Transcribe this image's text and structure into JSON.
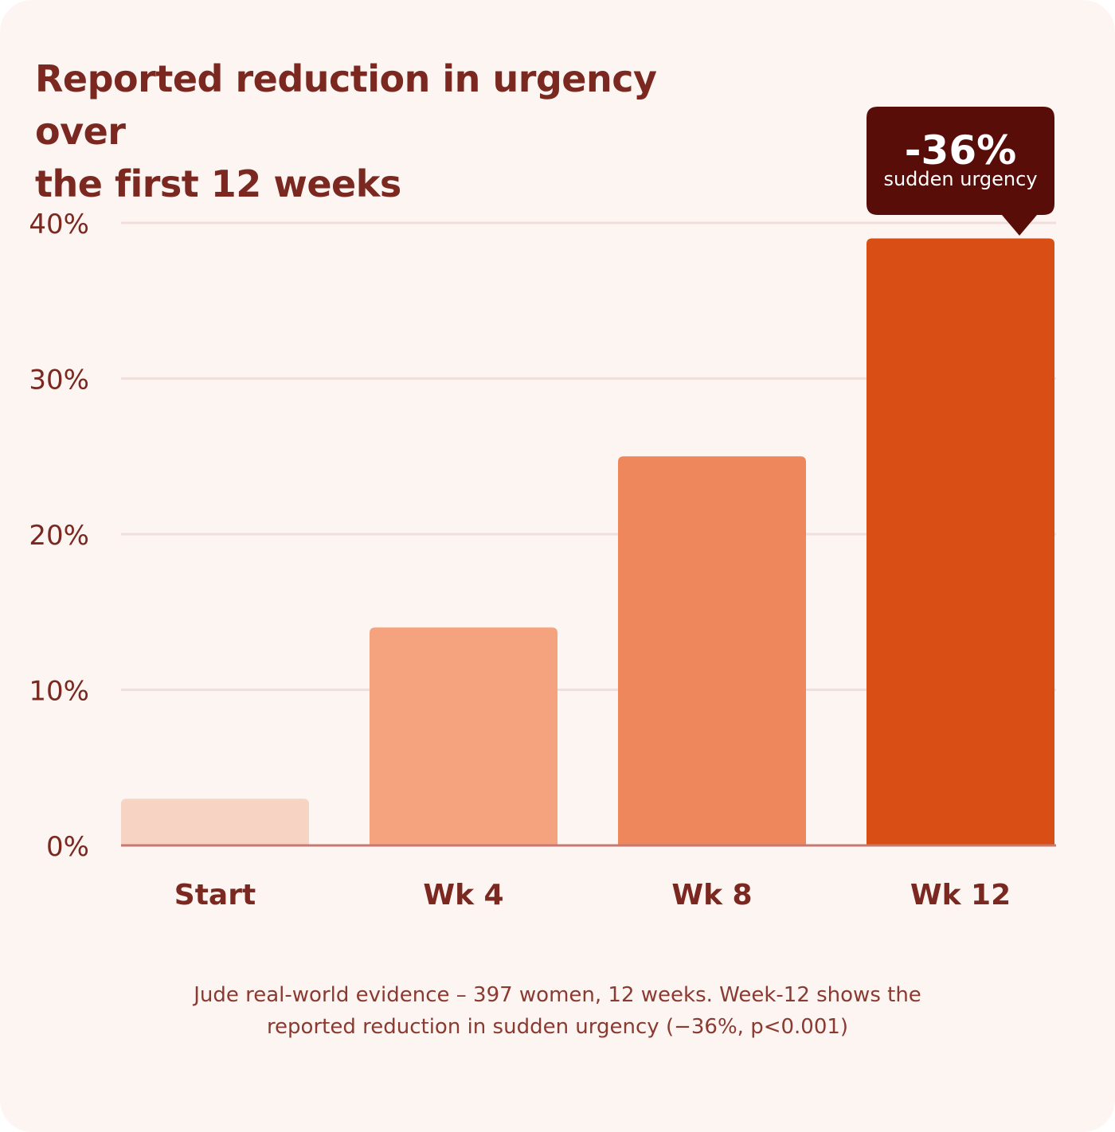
{
  "title_line1": "Reported reduction in urgency over",
  "title_line2": "the first 12 weeks",
  "chart_data": {
    "type": "bar",
    "categories": [
      "Start",
      "Wk 4",
      "Wk 8",
      "Wk 12"
    ],
    "values": [
      3,
      14,
      25,
      39
    ],
    "bar_colors": [
      "#f6d3c2",
      "#f5a37f",
      "#ee875c",
      "#d84e14"
    ],
    "ylim": [
      0,
      40
    ],
    "yticks": [
      {
        "value": 0,
        "label": "0%"
      },
      {
        "value": 10,
        "label": "10%"
      },
      {
        "value": 20,
        "label": "20%"
      },
      {
        "value": 30,
        "label": "30%"
      },
      {
        "value": 40,
        "label": "40%"
      }
    ],
    "grid": true,
    "annotation": {
      "category": "Wk 12",
      "value_text": "-36%",
      "label_text": "sudden urgency"
    }
  },
  "footnote_line1": "Jude real-world evidence – 397 women, 12 weeks. Week-12 shows the",
  "footnote_line2": "reported reduction in sudden urgency (−36%, p<0.001)",
  "colors": {
    "background": "#fdf5f2",
    "text": "#7a2820",
    "grid": "#f1dfdb",
    "axis": "#c47a72",
    "callout": "#590d08"
  }
}
